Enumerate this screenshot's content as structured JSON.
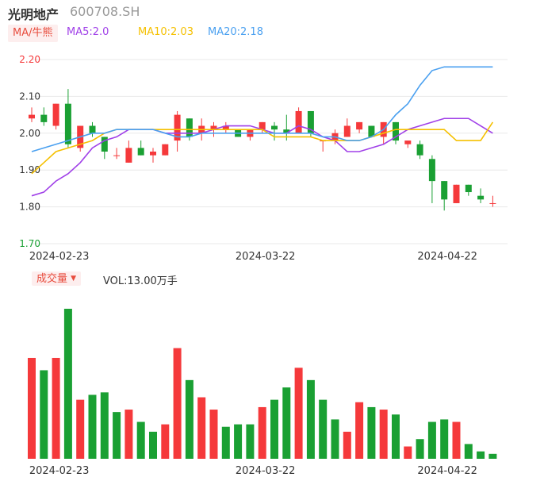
{
  "header": {
    "name": "光明地产",
    "code": "600708.SH"
  },
  "ma_legend": {
    "toggle_label": "MA/牛熊",
    "ma5_label": "MA5:2.0",
    "ma10_label": "MA10:2.03",
    "ma20_label": "MA20:2.18",
    "toggle_color": "#e84c3d",
    "ma5_color": "#a040e8",
    "ma10_color": "#f5c000",
    "ma20_color": "#4aa0f0"
  },
  "volume_legend": {
    "toggle_label": "成交量",
    "dropdown_icon": "caret-down-icon",
    "vol_label": "VOL:13.00万手"
  },
  "colors": {
    "up": "#f5393b",
    "down": "#1aa033",
    "grid": "#e8e8e8"
  },
  "chart_data": [
    {
      "type": "candlestick",
      "ylim": [
        1.7,
        2.2
      ],
      "yticks": [
        "2.20",
        "2.10",
        "2.00",
        "1.90",
        "1.80",
        "1.70"
      ],
      "xtick_labels": [
        "2024-02-23",
        "2024-03-22",
        "2024-04-22"
      ],
      "xtick_index": [
        2,
        19,
        34
      ],
      "candles": [
        [
          2.04,
          2.05,
          2.03,
          2.07
        ],
        [
          2.05,
          2.03,
          2.02,
          2.07
        ],
        [
          2.02,
          2.08,
          2.01,
          2.08
        ],
        [
          2.08,
          1.97,
          1.96,
          2.12
        ],
        [
          1.96,
          2.02,
          1.95,
          2.02
        ],
        [
          2.02,
          2.0,
          1.99,
          2.03
        ],
        [
          1.99,
          1.95,
          1.93,
          1.99
        ],
        [
          1.94,
          1.94,
          1.93,
          1.96
        ],
        [
          1.92,
          1.96,
          1.92,
          1.98
        ],
        [
          1.96,
          1.94,
          1.94,
          1.98
        ],
        [
          1.94,
          1.95,
          1.92,
          1.96
        ],
        [
          1.94,
          1.97,
          1.94,
          1.97
        ],
        [
          1.98,
          2.05,
          1.95,
          2.06
        ],
        [
          2.04,
          1.99,
          1.98,
          2.04
        ],
        [
          2.0,
          2.02,
          1.98,
          2.04
        ],
        [
          2.01,
          2.02,
          1.99,
          2.03
        ],
        [
          2.01,
          2.02,
          2.0,
          2.03
        ],
        [
          2.01,
          1.99,
          1.99,
          2.01
        ],
        [
          1.99,
          2.01,
          1.98,
          2.01
        ],
        [
          2.01,
          2.03,
          2.0,
          2.03
        ],
        [
          2.02,
          2.01,
          1.98,
          2.03
        ],
        [
          2.01,
          2.0,
          1.98,
          2.05
        ],
        [
          2.0,
          2.06,
          2.0,
          2.07
        ],
        [
          2.06,
          2.0,
          1.99,
          2.06
        ],
        [
          1.98,
          1.98,
          1.95,
          1.98
        ],
        [
          1.98,
          2.0,
          1.97,
          2.01
        ],
        [
          1.99,
          2.02,
          1.99,
          2.04
        ],
        [
          2.01,
          2.03,
          2.0,
          2.03
        ],
        [
          2.02,
          1.99,
          1.99,
          2.02
        ],
        [
          1.99,
          2.03,
          1.97,
          2.03
        ],
        [
          2.03,
          1.98,
          1.97,
          2.03
        ],
        [
          1.97,
          1.98,
          1.96,
          1.98
        ],
        [
          1.97,
          1.94,
          1.93,
          1.98
        ],
        [
          1.93,
          1.87,
          1.81,
          1.94
        ],
        [
          1.87,
          1.82,
          1.79,
          1.87
        ],
        [
          1.81,
          1.86,
          1.81,
          1.86
        ],
        [
          1.86,
          1.84,
          1.83,
          1.86
        ],
        [
          1.83,
          1.82,
          1.81,
          1.85
        ],
        [
          1.81,
          1.81,
          1.8,
          1.83
        ]
      ],
      "ma_series": [
        {
          "name": "MA5",
          "values": [
            1.83,
            1.84,
            1.87,
            1.89,
            1.92,
            1.96,
            1.98,
            1.99,
            2.01,
            2.01,
            2.01,
            2.0,
            2.0,
            2.0,
            2.0,
            2.01,
            2.02,
            2.02,
            2.02,
            2.01,
            2.0,
            2.0,
            2.02,
            2.01,
            1.99,
            1.98,
            1.95,
            1.95,
            1.96,
            1.97,
            1.99,
            2.01,
            2.02,
            2.03,
            2.04,
            2.04,
            2.04,
            2.02,
            2.0
          ]
        },
        {
          "name": "MA10",
          "values": [
            1.89,
            1.92,
            1.95,
            1.96,
            1.97,
            1.98,
            2.0,
            2.01,
            2.01,
            2.01,
            2.01,
            2.01,
            2.01,
            2.01,
            2.01,
            2.01,
            2.01,
            2.01,
            2.01,
            2.01,
            1.99,
            1.99,
            1.99,
            1.99,
            1.98,
            1.98,
            1.98,
            1.98,
            1.99,
            2.0,
            2.01,
            2.01,
            2.01,
            2.01,
            2.01,
            1.98,
            1.98,
            1.98,
            2.03
          ]
        },
        {
          "name": "MA20",
          "values": [
            1.95,
            1.96,
            1.97,
            1.98,
            1.99,
            2.0,
            2.0,
            2.01,
            2.01,
            2.01,
            2.01,
            2.0,
            1.99,
            1.99,
            2.0,
            2.0,
            2.0,
            2.0,
            2.0,
            2.0,
            2.0,
            2.0,
            2.0,
            2.0,
            1.99,
            1.99,
            1.98,
            1.98,
            1.99,
            2.01,
            2.05,
            2.08,
            2.13,
            2.17,
            2.18,
            2.18,
            2.18,
            2.18,
            2.18
          ]
        }
      ]
    },
    {
      "type": "bar",
      "series_name": "成交量",
      "ylim": [
        0,
        61
      ],
      "values": [
        41,
        36,
        41,
        61,
        24,
        26,
        27,
        19,
        20,
        15,
        11,
        14,
        45,
        32,
        25,
        20,
        13,
        14,
        14,
        21,
        24,
        29,
        37,
        32,
        24,
        16,
        11,
        23,
        21,
        20,
        18,
        5,
        8,
        15,
        16,
        15,
        6,
        3,
        2
      ],
      "up": [
        1,
        0,
        1,
        0,
        1,
        0,
        0,
        0,
        1,
        0,
        0,
        1,
        1,
        0,
        1,
        1,
        0,
        0,
        0,
        1,
        0,
        0,
        1,
        0,
        0,
        0,
        1,
        1,
        0,
        1,
        0,
        1,
        0,
        0,
        0,
        1,
        0,
        0,
        0
      ]
    }
  ]
}
